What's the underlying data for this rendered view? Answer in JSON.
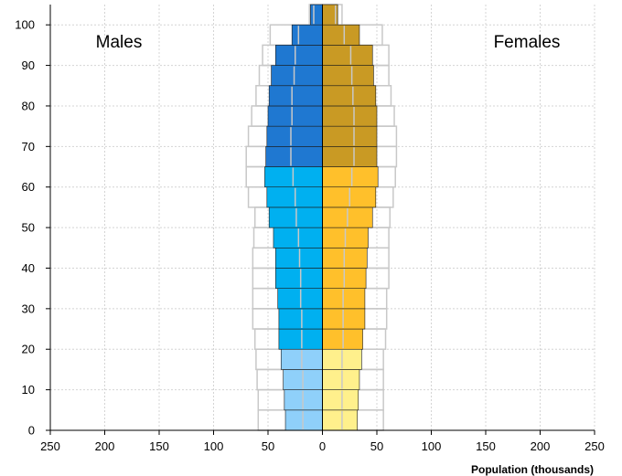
{
  "chart_data": {
    "type": "bar",
    "orientation": "horizontal",
    "subtype": "population-pyramid",
    "title": "",
    "xlabel": "Population (thousands)",
    "ylabel": "",
    "xlim": [
      -250,
      250
    ],
    "ylim": [
      0,
      105
    ],
    "bin_width": 5,
    "grid": true,
    "x_ticks": [
      -250,
      -200,
      -150,
      -100,
      -50,
      0,
      50,
      100,
      150,
      200,
      250
    ],
    "x_tick_labels": [
      "250",
      "200",
      "150",
      "100",
      "50",
      "0",
      "50",
      "100",
      "150",
      "200",
      "250"
    ],
    "y_ticks": [
      0,
      10,
      20,
      30,
      40,
      50,
      60,
      70,
      80,
      90,
      100
    ],
    "y_tick_labels": [
      "0",
      "10",
      "20",
      "30",
      "40",
      "50",
      "60",
      "70",
      "80",
      "90",
      "100"
    ],
    "labels": {
      "males": "Males",
      "females": "Females"
    },
    "age_groups": [
      0,
      5,
      10,
      15,
      20,
      25,
      30,
      35,
      40,
      45,
      50,
      55,
      60,
      65,
      70,
      75,
      80,
      85,
      90,
      95,
      100
    ],
    "series": [
      {
        "values": [
          -34,
          -35,
          -36,
          -38,
          -40,
          -40,
          -41,
          -43,
          -43,
          -45,
          -49,
          -51,
          -53,
          -52,
          -51,
          -50,
          -49,
          -47,
          -43,
          -28,
          -11
        ]
      },
      {
        "values": [
          32,
          33,
          34,
          36,
          37,
          39,
          39,
          40,
          41,
          42,
          46,
          49,
          51,
          50,
          50,
          50,
          49,
          47,
          46,
          34,
          14
        ]
      }
    ],
    "comparison": {
      "males": [
        -59,
        -59,
        -60,
        -61,
        -62,
        -64,
        -64,
        -64,
        -64,
        -63,
        -62,
        -68,
        -70,
        -70,
        -68,
        -65,
        -61,
        -58,
        -55,
        -48,
        -12
      ],
      "females": [
        56,
        56,
        56,
        56,
        58,
        59,
        59,
        61,
        61,
        61,
        62,
        65,
        67,
        68,
        68,
        66,
        63,
        61,
        61,
        55,
        18
      ]
    },
    "dividers": {
      "males": [
        -18,
        -18,
        -18,
        -19,
        -19,
        -19,
        -20,
        -20,
        -21,
        -22,
        -24,
        -25,
        -27,
        -29,
        -29,
        -28,
        -28,
        -26,
        -25,
        -22,
        -8
      ],
      "females": [
        18,
        18,
        18,
        18,
        19,
        19,
        19,
        20,
        20,
        21,
        23,
        25,
        27,
        29,
        29,
        29,
        28,
        27,
        26,
        20,
        12
      ]
    },
    "colors": {
      "males": [
        "#8fd0fa",
        "#8fd0fa",
        "#8fd0fa",
        "#8fd0fa",
        "#00b0f0",
        "#00b0f0",
        "#00b0f0",
        "#00b0f0",
        "#00b0f0",
        "#00b0f0",
        "#00b0f0",
        "#00b0f0",
        "#00b0f0",
        "#1f78d1",
        "#1f78d1",
        "#1f78d1",
        "#1f78d1",
        "#1f78d1",
        "#1f78d1",
        "#1f78d1",
        "#1f78d1"
      ],
      "females": [
        "#fff08c",
        "#fff08c",
        "#fff08c",
        "#fff08c",
        "#ffc02b",
        "#ffc02b",
        "#ffc02b",
        "#ffc02b",
        "#ffc02b",
        "#ffc02b",
        "#ffc02b",
        "#ffc02b",
        "#ffc02b",
        "#c99a24",
        "#c99a24",
        "#c99a24",
        "#c99a24",
        "#c99a24",
        "#c99a24",
        "#c99a24",
        "#c99a24"
      ],
      "comparison_outline": "#c8c8c8",
      "divider": "#c8c8c8",
      "bar_outline": "#1a1a1a",
      "grid": "#d4d4d4"
    },
    "legend": "none"
  }
}
